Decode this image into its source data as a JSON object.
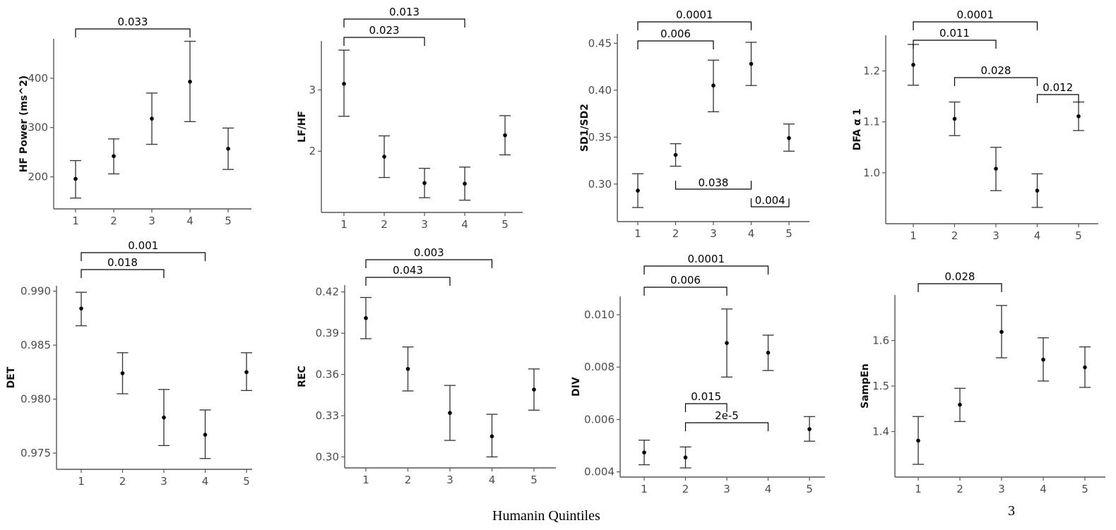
{
  "footer": {
    "xlabel": "Humanin Quintiles",
    "page_number": "3"
  },
  "chart_data": [
    {
      "type": "scatter",
      "ylabel": "HF Power (ms^2)",
      "categories": [
        "1",
        "2",
        "3",
        "4",
        "5"
      ],
      "y_ticks": [
        200,
        300,
        400
      ],
      "ylim": [
        135,
        480
      ],
      "mean": [
        196,
        242,
        318,
        393,
        257
      ],
      "lower": [
        157,
        206,
        266,
        312,
        215
      ],
      "upper": [
        233,
        277,
        370,
        475,
        299
      ],
      "significance": [
        {
          "from": "1",
          "to": "4",
          "label": "0.033"
        }
      ]
    },
    {
      "type": "scatter",
      "ylabel": "LF/HF",
      "categories": [
        "1",
        "2",
        "3",
        "4",
        "5"
      ],
      "y_ticks": [
        2,
        3
      ],
      "ylim": [
        1.0,
        3.8
      ],
      "mean": [
        3.1,
        1.91,
        1.48,
        1.47,
        2.26
      ],
      "lower": [
        2.57,
        1.57,
        1.24,
        1.2,
        1.94
      ],
      "upper": [
        3.65,
        2.25,
        1.72,
        1.74,
        2.58
      ],
      "significance": [
        {
          "from": "1",
          "to": "3",
          "label": "0.023"
        },
        {
          "from": "1",
          "to": "4",
          "label": "0.013"
        }
      ]
    },
    {
      "type": "scatter",
      "ylabel": "SD1/SD2",
      "categories": [
        "1",
        "2",
        "3",
        "4",
        "5"
      ],
      "y_ticks": [
        "0.30",
        "0.35",
        "0.40",
        "0.45"
      ],
      "ylim": [
        0.26,
        0.46
      ],
      "mean": [
        0.293,
        0.331,
        0.405,
        0.428,
        0.349
      ],
      "lower": [
        0.275,
        0.319,
        0.377,
        0.405,
        0.335
      ],
      "upper": [
        0.311,
        0.343,
        0.432,
        0.451,
        0.364
      ],
      "significance": [
        {
          "from": "1",
          "to": "3",
          "label": "0.006"
        },
        {
          "from": "1",
          "to": "4",
          "label": "0.0001"
        },
        {
          "from": "2",
          "to": "4",
          "label": "0.038"
        },
        {
          "from": "4",
          "to": "5",
          "label": "0.004"
        }
      ]
    },
    {
      "type": "scatter",
      "ylabel": "DFA α 1",
      "categories": [
        "1",
        "2",
        "3",
        "4",
        "5"
      ],
      "y_ticks": [
        "1.0",
        "1.1",
        "1.2"
      ],
      "ylim": [
        0.9,
        1.27
      ],
      "mean": [
        1.212,
        1.106,
        1.008,
        0.965,
        1.111
      ],
      "lower": [
        1.172,
        1.073,
        0.965,
        0.932,
        1.083
      ],
      "upper": [
        1.252,
        1.139,
        1.05,
        0.998,
        1.139
      ],
      "significance": [
        {
          "from": "1",
          "to": "3",
          "label": "0.011"
        },
        {
          "from": "1",
          "to": "4",
          "label": "0.0001"
        },
        {
          "from": "2",
          "to": "4",
          "label": "0.028"
        },
        {
          "from": "4",
          "to": "5",
          "label": "0.012"
        }
      ]
    },
    {
      "type": "scatter",
      "ylabel": "DET",
      "categories": [
        "1",
        "2",
        "3",
        "4",
        "5"
      ],
      "y_ticks": [
        "0.975",
        "0.980",
        "0.985",
        "0.990"
      ],
      "ylim": [
        0.9735,
        0.9905
      ],
      "mean": [
        0.9884,
        0.9824,
        0.9783,
        0.9767,
        0.9825
      ],
      "lower": [
        0.9868,
        0.9805,
        0.9757,
        0.9745,
        0.9808
      ],
      "upper": [
        0.9899,
        0.9843,
        0.9809,
        0.979,
        0.9843
      ],
      "significance": [
        {
          "from": "1",
          "to": "3",
          "label": "0.018"
        },
        {
          "from": "1",
          "to": "4",
          "label": "0.001"
        }
      ]
    },
    {
      "type": "scatter",
      "ylabel": "REC",
      "categories": [
        "1",
        "2",
        "3",
        "4",
        "5"
      ],
      "y_ticks": [
        "0.30",
        "0.33",
        "0.36",
        "0.39",
        "0.42"
      ],
      "ylim": [
        0.292,
        0.425
      ],
      "mean": [
        0.401,
        0.364,
        0.332,
        0.315,
        0.349
      ],
      "lower": [
        0.386,
        0.348,
        0.312,
        0.3,
        0.334
      ],
      "upper": [
        0.416,
        0.38,
        0.352,
        0.331,
        0.364
      ],
      "significance": [
        {
          "from": "1",
          "to": "3",
          "label": "0.043"
        },
        {
          "from": "1",
          "to": "4",
          "label": "0.003"
        }
      ]
    },
    {
      "type": "scatter",
      "ylabel": "DIV",
      "categories": [
        "1",
        "2",
        "3",
        "4",
        "5"
      ],
      "y_ticks": [
        "0.004",
        "0.006",
        "0.008",
        "0.010"
      ],
      "ylim": [
        0.0038,
        0.0107
      ],
      "mean": [
        0.00474,
        0.00455,
        0.00892,
        0.00855,
        0.00563
      ],
      "lower": [
        0.00427,
        0.00415,
        0.00762,
        0.00787,
        0.00517
      ],
      "upper": [
        0.00521,
        0.00495,
        0.01022,
        0.00922,
        0.00611
      ],
      "significance": [
        {
          "from": "1",
          "to": "3",
          "label": "0.006"
        },
        {
          "from": "1",
          "to": "4",
          "label": "0.0001"
        },
        {
          "from": "2",
          "to": "3",
          "label": "0.015"
        },
        {
          "from": "2",
          "to": "4",
          "label": "2e-5"
        }
      ]
    },
    {
      "type": "scatter",
      "ylabel": "SampEn",
      "categories": [
        "1",
        "2",
        "3",
        "4",
        "5"
      ],
      "y_ticks": [
        "1.4",
        "1.5",
        "1.6"
      ],
      "ylim": [
        1.3,
        1.7
      ],
      "mean": [
        1.38,
        1.459,
        1.619,
        1.558,
        1.541
      ],
      "lower": [
        1.328,
        1.422,
        1.562,
        1.511,
        1.497
      ],
      "upper": [
        1.433,
        1.495,
        1.677,
        1.606,
        1.586
      ],
      "significance": [
        {
          "from": "1",
          "to": "3",
          "label": "0.028"
        }
      ]
    }
  ]
}
